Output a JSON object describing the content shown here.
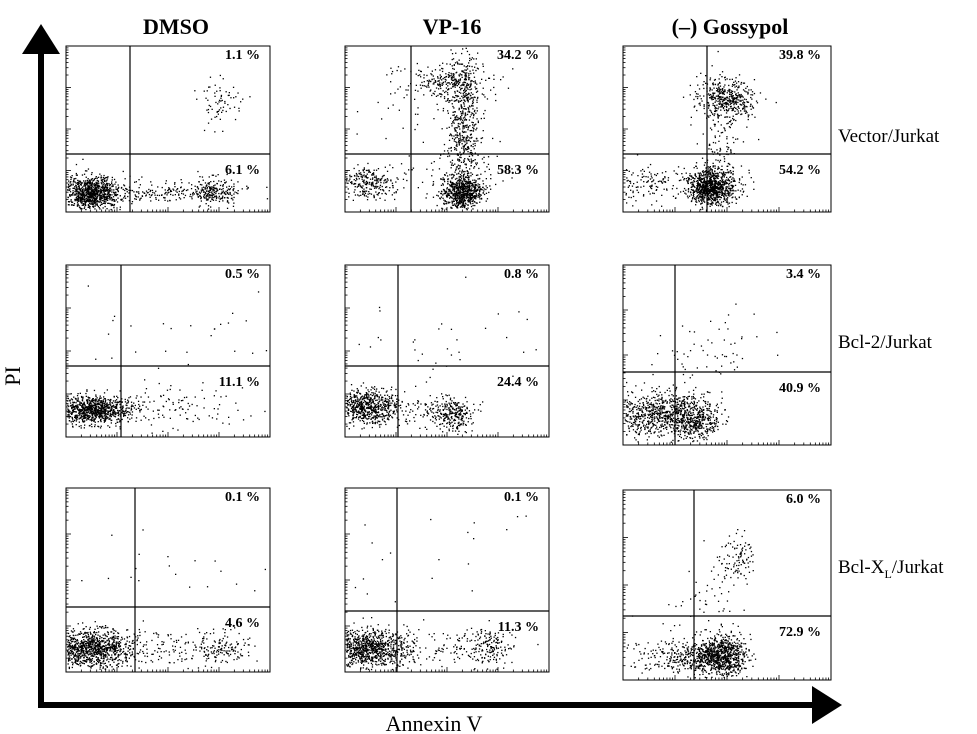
{
  "chart_data": {
    "type": "scatter",
    "description_axes": "flow cytometry dot plots",
    "xlabel": "Annexin V",
    "ylabel": "PI",
    "columns": [
      "DMSO",
      "VP-16",
      "(–) Gossypol"
    ],
    "rows": [
      {
        "label": "Vector/Jurkat",
        "label_main": "Vector/Jurkat",
        "label_sub": "",
        "label_after": ""
      },
      {
        "label": "Bcl-2/Jurkat",
        "label_main": "Bcl-2/Jurkat",
        "label_sub": "",
        "label_after": ""
      },
      {
        "label": "Bcl-XL/Jurkat",
        "label_main": "Bcl-X",
        "label_sub": "L",
        "label_after": "/Jurkat"
      }
    ],
    "panels": [
      {
        "row": 0,
        "col": 0,
        "upper_right": "1.1 %",
        "lower_right": "6.1 %"
      },
      {
        "row": 0,
        "col": 1,
        "upper_right": "34.2 %",
        "lower_right": "58.3 %"
      },
      {
        "row": 0,
        "col": 2,
        "upper_right": "39.8 %",
        "lower_right": "54.2 %"
      },
      {
        "row": 1,
        "col": 0,
        "upper_right": "0.5 %",
        "lower_right": "11.1 %"
      },
      {
        "row": 1,
        "col": 1,
        "upper_right": "0.8 %",
        "lower_right": "24.4 %"
      },
      {
        "row": 1,
        "col": 2,
        "upper_right": "3.4 %",
        "lower_right": "40.9 %"
      },
      {
        "row": 2,
        "col": 0,
        "upper_right": "0.1 %",
        "lower_right": "4.6 %"
      },
      {
        "row": 2,
        "col": 1,
        "upper_right": "0.1 %",
        "lower_right": "11.3 %"
      },
      {
        "row": 2,
        "col": 2,
        "upper_right": "6.0 %",
        "lower_right": "72.9 %"
      }
    ]
  }
}
